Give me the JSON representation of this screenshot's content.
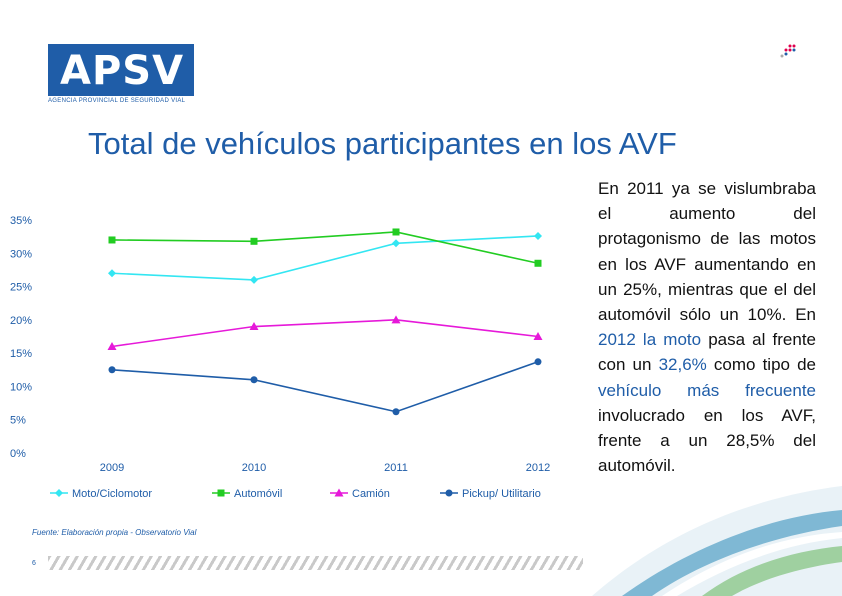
{
  "logo": {
    "text": "APSV",
    "subtitle": "AGENCIA PROVINCIAL DE SEGURIDAD VIAL"
  },
  "title": "Total de vehículos participantes en los AVF",
  "source": "Fuente: Elaboración propia - Observatorio Vial",
  "page_number": "6",
  "body": {
    "p1": "En 2011 ya se vislumbraba el aumento del protagonismo de las motos en los AVF aumentando en un 25%, mientras que el del automóvil sólo un 10%. En",
    "h1": "2012 la moto",
    "p2": "pasa al frente con un",
    "h2": "32,6%",
    "p3": "como tipo de",
    "h3": "vehículo más frecuente",
    "p4": "involucrado en los AVF, frente a un 28,5% del automóvil."
  },
  "colors": {
    "brand": "#1f5da8"
  },
  "chart_data": {
    "type": "line",
    "categories": [
      "2009",
      "2010",
      "2011",
      "2012"
    ],
    "y_ticks": [
      "0%",
      "5%",
      "10%",
      "15%",
      "20%",
      "25%",
      "30%",
      "35%"
    ],
    "ylim": [
      0,
      35
    ],
    "grid": false,
    "legend_position": "bottom",
    "series": [
      {
        "name": "Moto/Ciclomotor",
        "values": [
          27,
          26,
          31.5,
          32.6
        ],
        "color": "#33e6f2",
        "marker": "diamond"
      },
      {
        "name": "Automóvil",
        "values": [
          32,
          31.8,
          33.2,
          28.5
        ],
        "color": "#22cc22",
        "marker": "square"
      },
      {
        "name": "Camión",
        "values": [
          16,
          19,
          20,
          17.5
        ],
        "color": "#e619d9",
        "marker": "triangle"
      },
      {
        "name": "Pickup/ Utilitario",
        "values": [
          12.5,
          11,
          6.2,
          13.7
        ],
        "color": "#1f5da8",
        "marker": "circle"
      }
    ]
  }
}
